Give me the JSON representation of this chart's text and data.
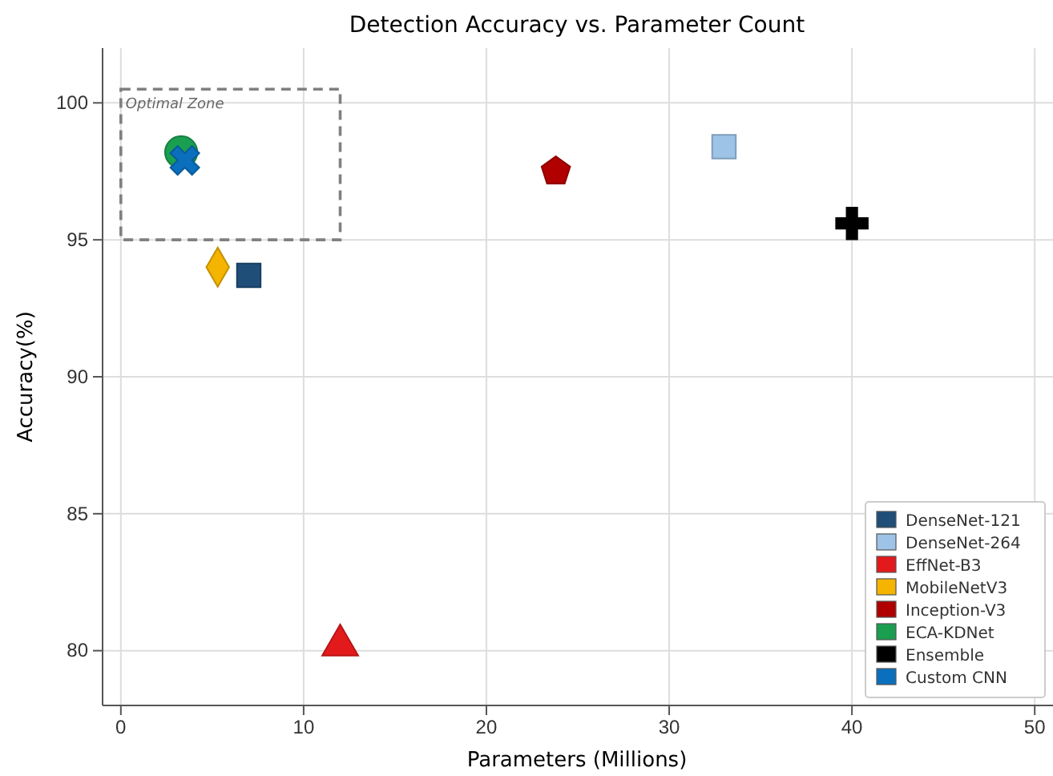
{
  "chart_data": {
    "type": "scatter",
    "title": "Detection Accuracy vs. Parameter Count",
    "xlabel": "Parameters (Millions)",
    "ylabel": "Accuracy(%)",
    "xlim": [
      -1,
      51
    ],
    "xticks": [
      0,
      10,
      20,
      30,
      40,
      50
    ],
    "ylim": [
      78,
      102
    ],
    "yticks": [
      80,
      85,
      90,
      95,
      100
    ],
    "grid": true,
    "legend": "bottom right",
    "annotations": [
      "Optimal Zone"
    ],
    "series": [
      {
        "name": "DenseNet-121",
        "color": "#1f4e79",
        "marker": "square",
        "x": [
          7.0
        ],
        "values": [
          93.7
        ]
      },
      {
        "name": "DenseNet-264",
        "color": "#9dc3e6",
        "marker": "square",
        "x": [
          33.0
        ],
        "values": [
          98.4
        ]
      },
      {
        "name": "EffNet-B3",
        "color": "#e31a1c",
        "marker": "triangle",
        "x": [
          12.0
        ],
        "values": [
          80.2
        ]
      },
      {
        "name": "MobileNetV3",
        "color": "#f4b400",
        "marker": "diamond",
        "x": [
          5.3
        ],
        "values": [
          94.0
        ]
      },
      {
        "name": "Inception-V3",
        "color": "#b00000",
        "x": [
          23.8
        ],
        "values": [
          97.5
        ]
      },
      {
        "name": "ECA-KDNet",
        "color": "#1a9e50",
        "marker": "circle",
        "x": [
          3.3
        ],
        "values": [
          98.2
        ]
      },
      {
        "name": "Ensemble",
        "color": "#000000",
        "marker": "cross",
        "x": [
          40.0
        ],
        "values": [
          95.6
        ]
      },
      {
        "name": "Custom CNN",
        "color": "#0a6fbd",
        "marker": "x",
        "x": [
          3.5
        ],
        "values": [
          97.9
        ]
      }
    ]
  }
}
